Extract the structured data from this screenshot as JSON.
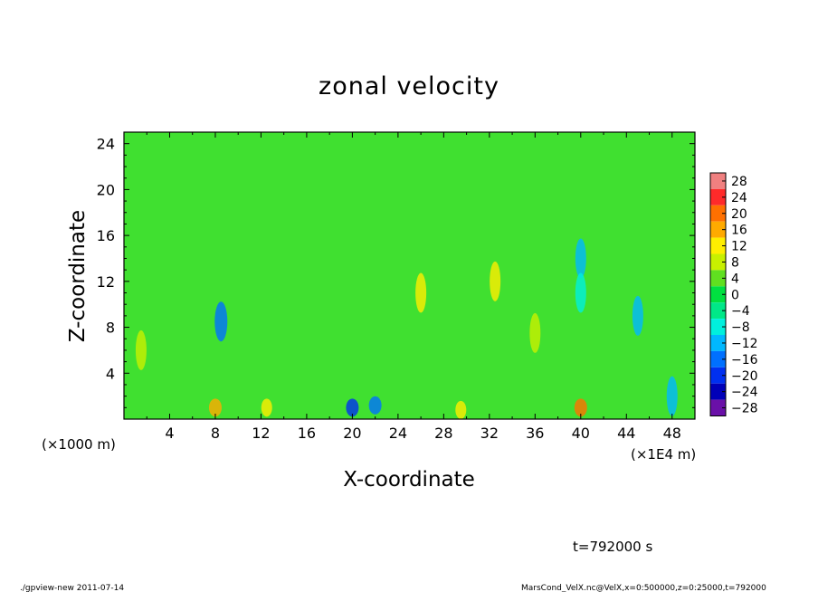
{
  "chart_data": {
    "type": "heatmap",
    "title": "zonal velocity",
    "xlabel": "X-coordinate",
    "ylabel": "Z-coordinate",
    "xlim": [
      0,
      50
    ],
    "ylim": [
      0,
      25
    ],
    "x_ticks": [
      "4",
      "8",
      "12",
      "16",
      "20",
      "24",
      "28",
      "32",
      "36",
      "40",
      "44",
      "48"
    ],
    "y_ticks": [
      "4",
      "8",
      "12",
      "16",
      "20",
      "24"
    ],
    "x_unit_left": "(×1000 m)",
    "x_unit_right": "(×1E4 m)",
    "colorbar_levels": [
      "28",
      "24",
      "20",
      "16",
      "12",
      "8",
      "4",
      "0",
      "−4",
      "−8",
      "−12",
      "−16",
      "−20",
      "−24",
      "−28"
    ],
    "colorbar_colors": [
      "#f08080",
      "#ff2a2a",
      "#ff7000",
      "#ffaa00",
      "#ffee00",
      "#c8f000",
      "#60e020",
      "#00e040",
      "#00e888",
      "#00f0dd",
      "#00b8ff",
      "#0070ff",
      "#0030f0",
      "#0000b8",
      "#6a10a8"
    ],
    "value_range": [
      -30,
      30
    ],
    "features": [
      {
        "x": 40,
        "z": 14,
        "value": -14
      },
      {
        "x": 40,
        "z": 11,
        "value": -10
      },
      {
        "x": 8.5,
        "z": 8.5,
        "value": -16
      },
      {
        "x": 32.5,
        "z": 12,
        "value": 14
      },
      {
        "x": 26,
        "z": 11,
        "value": 12
      },
      {
        "x": 40,
        "z": 1.0,
        "value": 22
      },
      {
        "x": 20,
        "z": 1.0,
        "value": -20
      },
      {
        "x": 22,
        "z": 1.2,
        "value": -18
      },
      {
        "x": 8,
        "z": 1.0,
        "value": 16
      },
      {
        "x": 12.5,
        "z": 1.0,
        "value": 14
      },
      {
        "x": 29.5,
        "z": 0.8,
        "value": 14
      },
      {
        "x": 36,
        "z": 7.5,
        "value": 10
      },
      {
        "x": 1.5,
        "z": 6,
        "value": 10
      },
      {
        "x": 45,
        "z": 9,
        "value": -12
      },
      {
        "x": 48,
        "z": 2,
        "value": -14
      }
    ]
  },
  "annotations": {
    "time_label": "t=792000 s",
    "footer_left": "./gpview-new  2011-07-14",
    "footer_right": "MarsCond_VelX.nc@VelX,x=0:500000,z=0:25000,t=792000"
  }
}
